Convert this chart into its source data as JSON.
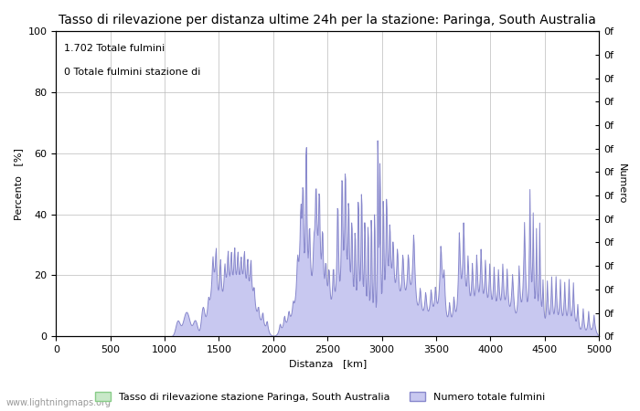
{
  "title": "Tasso di rilevazione per distanza ultime 24h per la stazione: Paringa, South Australia",
  "xlabel": "Distanza   [km]",
  "ylabel_left": "Percento   [%]",
  "ylabel_right": "Numero",
  "annotation_line1": "1.702 Totale fulmini",
  "annotation_line2": "0 Totale fulmini stazione di",
  "legend_label1": "Tasso di rilevazione stazione Paringa, South Australia",
  "legend_label2": "Numero totale fulmini",
  "watermark": "www.lightningmaps.org",
  "xlim": [
    0,
    5000
  ],
  "ylim": [
    0,
    100
  ],
  "xticks": [
    0,
    500,
    1000,
    1500,
    2000,
    2500,
    3000,
    3500,
    4000,
    4500,
    5000
  ],
  "yticks_left": [
    0,
    20,
    40,
    60,
    80,
    100
  ],
  "right_ytick_labels": [
    "0f",
    "0f",
    "0f",
    "0f",
    "0f",
    "0f",
    "0f",
    "0f",
    "0f",
    "0f",
    "0f",
    "0f",
    "0f",
    "0f"
  ],
  "fill_blue_color": "#c8c8f0",
  "fill_blue_edge": "#8888cc",
  "fill_green_color": "#c8e8c8",
  "fill_green_edge": "#88cc88",
  "bg_color": "#ffffff",
  "grid_color": "#bbbbbb",
  "title_fontsize": 10,
  "label_fontsize": 8,
  "tick_fontsize": 8,
  "annotation_fontsize": 8
}
